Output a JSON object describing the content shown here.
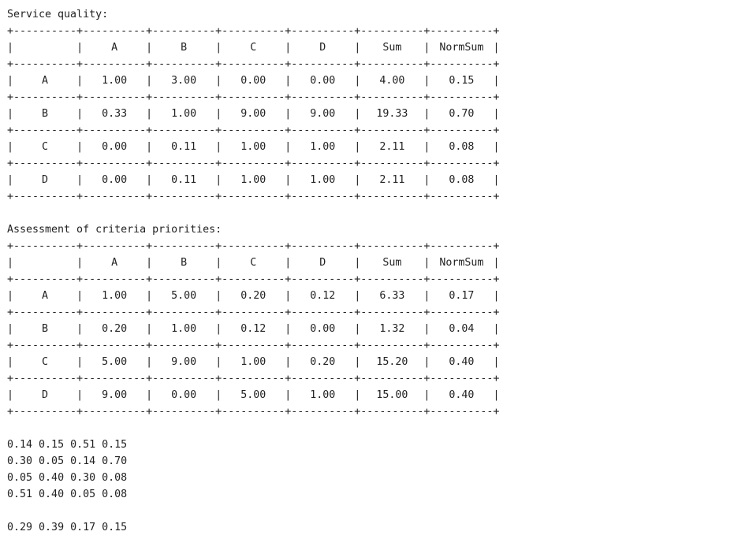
{
  "tables": [
    {
      "title": "Service quality:",
      "columns": [
        "A",
        "B",
        "C",
        "D",
        "Sum",
        "NormSum"
      ],
      "rows": [
        {
          "label": "A",
          "cells": [
            "1.00",
            "3.00",
            "0.00",
            "0.00",
            "4.00",
            "0.15"
          ]
        },
        {
          "label": "B",
          "cells": [
            "0.33",
            "1.00",
            "9.00",
            "9.00",
            "19.33",
            "0.70"
          ]
        },
        {
          "label": "C",
          "cells": [
            "0.00",
            "0.11",
            "1.00",
            "1.00",
            "2.11",
            "0.08"
          ]
        },
        {
          "label": "D",
          "cells": [
            "0.00",
            "0.11",
            "1.00",
            "1.00",
            "2.11",
            "0.08"
          ]
        }
      ]
    },
    {
      "title": "Assessment of criteria priorities:",
      "columns": [
        "A",
        "B",
        "C",
        "D",
        "Sum",
        "NormSum"
      ],
      "rows": [
        {
          "label": "A",
          "cells": [
            "1.00",
            "5.00",
            "0.20",
            "0.12",
            "6.33",
            "0.17"
          ]
        },
        {
          "label": "B",
          "cells": [
            "0.20",
            "1.00",
            "0.12",
            "0.00",
            "1.32",
            "0.04"
          ]
        },
        {
          "label": "C",
          "cells": [
            "5.00",
            "9.00",
            "1.00",
            "0.20",
            "15.20",
            "0.40"
          ]
        },
        {
          "label": "D",
          "cells": [
            "9.00",
            "0.00",
            "5.00",
            "1.00",
            "15.00",
            "0.40"
          ]
        }
      ]
    }
  ],
  "matrix": [
    [
      "0.14",
      "0.15",
      "0.51",
      "0.15"
    ],
    [
      "0.30",
      "0.05",
      "0.14",
      "0.70"
    ],
    [
      "0.05",
      "0.40",
      "0.30",
      "0.08"
    ],
    [
      "0.51",
      "0.40",
      "0.05",
      "0.08"
    ]
  ],
  "vector": [
    "0.29",
    "0.39",
    "0.17",
    "0.15"
  ]
}
